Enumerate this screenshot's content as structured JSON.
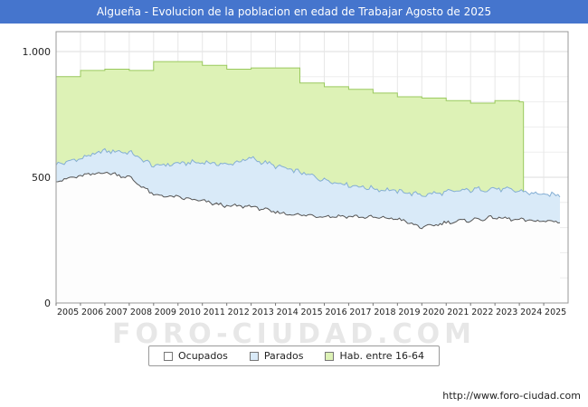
{
  "title": "Algueña - Evolucion de la poblacion en edad de Trabajar Agosto de 2025",
  "watermark": "FORO-CIUDAD.COM",
  "footer_url": "http://www.foro-ciudad.com",
  "colors": {
    "titlebar": "#4575cd",
    "plot_border": "#999999",
    "grid_minor": "#ededed",
    "grid_major": "#dcdcdc",
    "axis_text": "#222222"
  },
  "legend": {
    "items": [
      {
        "label": "Ocupados",
        "color": "#ffffff"
      },
      {
        "label": "Parados",
        "color": "#d9eaf8"
      },
      {
        "label": "Hab. entre 16-64",
        "color": "#ddf2b6"
      }
    ]
  },
  "chart_data": {
    "type": "area",
    "title": "Algueña - Evolucion de la poblacion en edad de Trabajar Agosto de 2025",
    "xlabel": "",
    "ylabel": "",
    "ylim": [
      0,
      1050
    ],
    "x_years": [
      2005,
      2006,
      2007,
      2008,
      2009,
      2010,
      2011,
      2012,
      2013,
      2014,
      2015,
      2016,
      2017,
      2018,
      2019,
      2020,
      2021,
      2022,
      2023,
      2024,
      2025
    ],
    "x_end": 2025.667,
    "y_ticks": [
      {
        "value": 0,
        "label": "0"
      },
      {
        "value": 500,
        "label": "500"
      },
      {
        "value": 1000,
        "label": "1.000"
      }
    ],
    "grid": true,
    "legend_position": "bottom",
    "series": [
      {
        "name": "Hab. entre 16-64",
        "style": "step",
        "end": 2024.17,
        "fill": "#ddf2b6",
        "line": "#9ac95e",
        "values": [
          900,
          925,
          930,
          925,
          960,
          960,
          945,
          930,
          935,
          935,
          875,
          860,
          850,
          835,
          820,
          815,
          805,
          795,
          805,
          800
        ]
      },
      {
        "name": "Parados (stacked top = Ocupados+Parados)",
        "style": "monthly",
        "fill": "#d9eaf8",
        "line": "#85afd4",
        "jitter": 8,
        "values": [
          550,
          575,
          605,
          600,
          545,
          555,
          560,
          550,
          575,
          545,
          520,
          490,
          470,
          455,
          445,
          430,
          440,
          450,
          455,
          445,
          430
        ]
      },
      {
        "name": "Ocupados",
        "style": "monthly",
        "fill": "#fdfdfd",
        "line": "#555555",
        "jitter": 6,
        "values": [
          485,
          505,
          520,
          500,
          430,
          420,
          405,
          385,
          385,
          360,
          350,
          345,
          345,
          340,
          335,
          300,
          320,
          330,
          340,
          330,
          325
        ]
      }
    ]
  }
}
